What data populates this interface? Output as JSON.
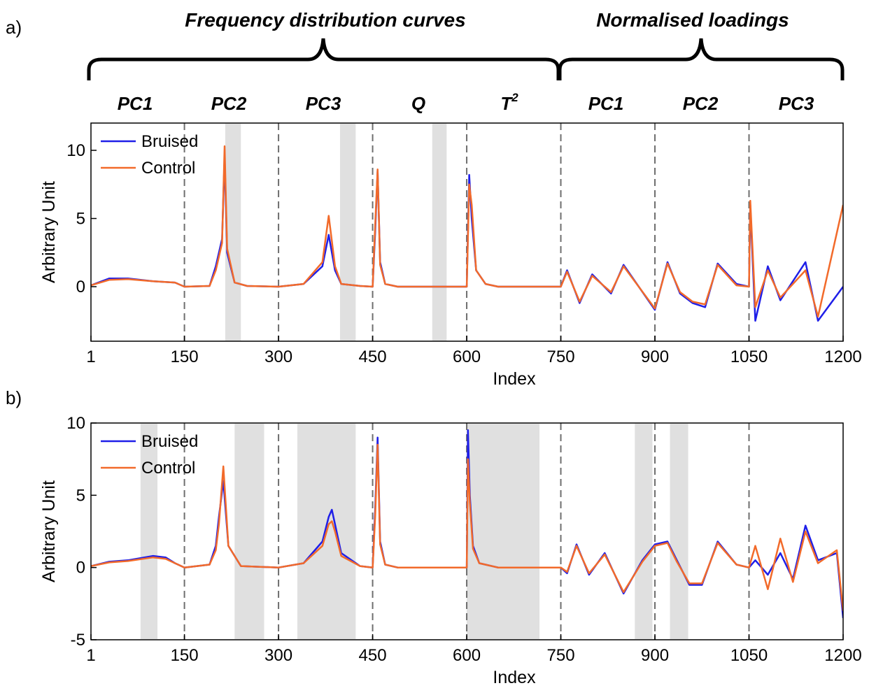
{
  "figure": {
    "group_titles": [
      "Frequency distribution curves",
      "Normalised loadings"
    ],
    "section_labels": [
      "PC1",
      "PC2",
      "PC3",
      "Q",
      "T",
      "PC1",
      "PC2",
      "PC3"
    ],
    "t2_superscript": "2"
  },
  "chart_data": [
    {
      "panel": "a)",
      "type": "line",
      "xlabel": "Index",
      "ylabel": "Arbitrary Unit",
      "xlim": [
        1,
        1200
      ],
      "ylim": [
        -4,
        12
      ],
      "xticks": [
        1,
        150,
        300,
        450,
        600,
        750,
        900,
        1050,
        1200
      ],
      "yticks": [
        0,
        5,
        10
      ],
      "legend": {
        "position": "top-left",
        "entries": [
          "Bruised",
          "Control"
        ]
      },
      "colors": {
        "Bruised": "#1f1fe8",
        "Control": "#f26a2a",
        "highlight": "#e0e0e0",
        "divider": "#6e6e6e"
      },
      "dividers": [
        150,
        300,
        450,
        600,
        750,
        900,
        1050
      ],
      "highlight_ranges": [
        [
          215,
          240
        ],
        [
          398,
          423
        ],
        [
          545,
          568
        ]
      ],
      "series": [
        {
          "name": "Bruised",
          "x": [
            1,
            30,
            60,
            100,
            135,
            150,
            190,
            200,
            210,
            214,
            218,
            230,
            250,
            300,
            340,
            370,
            380,
            390,
            400,
            430,
            450,
            454,
            458,
            462,
            470,
            490,
            600,
            604,
            608,
            615,
            630,
            650,
            750,
            760,
            780,
            800,
            830,
            850,
            900,
            920,
            940,
            960,
            980,
            1000,
            1030,
            1050,
            1052,
            1060,
            1080,
            1100,
            1140,
            1160,
            1200
          ],
          "y": [
            0.1,
            0.6,
            0.6,
            0.4,
            0.3,
            0,
            0.05,
            1.5,
            3.5,
            9.5,
            2.5,
            0.3,
            0.05,
            0,
            0.2,
            1.5,
            3.8,
            1.2,
            0.2,
            0.05,
            0,
            4,
            8.5,
            1.8,
            0.2,
            0,
            0,
            8.2,
            5,
            1.2,
            0.2,
            0,
            0,
            1.2,
            -1.2,
            0.9,
            -0.5,
            1.6,
            -1.7,
            1.8,
            -0.5,
            -1.2,
            -1.5,
            1.7,
            0.2,
            0,
            6,
            -2.5,
            1.5,
            -1,
            1.8,
            -2.5,
            0
          ]
        },
        {
          "name": "Control",
          "x": [
            1,
            30,
            60,
            100,
            135,
            150,
            190,
            200,
            210,
            214,
            218,
            230,
            250,
            300,
            340,
            370,
            380,
            390,
            400,
            430,
            450,
            454,
            458,
            462,
            470,
            490,
            600,
            604,
            608,
            615,
            630,
            650,
            750,
            760,
            780,
            800,
            830,
            850,
            900,
            920,
            940,
            960,
            980,
            1000,
            1030,
            1050,
            1052,
            1060,
            1080,
            1100,
            1140,
            1160,
            1200
          ],
          "y": [
            0.1,
            0.5,
            0.55,
            0.4,
            0.3,
            0,
            0.05,
            1.2,
            3.2,
            10.3,
            2.8,
            0.3,
            0.05,
            0,
            0.2,
            1.8,
            5.2,
            1.5,
            0.2,
            0.05,
            0,
            4.5,
            8.6,
            1.6,
            0.2,
            0,
            0,
            7.5,
            6,
            1.2,
            0.2,
            0,
            0,
            1.1,
            -1.1,
            0.8,
            -0.4,
            1.5,
            -1.6,
            1.7,
            -0.4,
            -1.1,
            -1.3,
            1.6,
            0.1,
            0,
            6.3,
            -1.5,
            1.2,
            -0.8,
            1.2,
            -2.2,
            6
          ]
        }
      ]
    },
    {
      "panel": "b)",
      "type": "line",
      "xlabel": "Index",
      "ylabel": "Arbitrary Unit",
      "xlim": [
        1,
        1200
      ],
      "ylim": [
        -5,
        10
      ],
      "xticks": [
        1,
        150,
        300,
        450,
        600,
        750,
        900,
        1050,
        1200
      ],
      "yticks": [
        -5,
        0,
        5,
        10
      ],
      "legend": {
        "position": "top-left",
        "entries": [
          "Bruised",
          "Control"
        ]
      },
      "colors": {
        "Bruised": "#1f1fe8",
        "Control": "#f26a2a",
        "highlight": "#e0e0e0",
        "divider": "#6e6e6e"
      },
      "dividers": [
        150,
        300,
        450,
        600,
        750,
        900,
        1050
      ],
      "highlight_ranges": [
        [
          80,
          107
        ],
        [
          230,
          277
        ],
        [
          330,
          423
        ],
        [
          600,
          716
        ],
        [
          868,
          896
        ],
        [
          924,
          953
        ]
      ],
      "series": [
        {
          "name": "Bruised",
          "x": [
            1,
            30,
            60,
            100,
            120,
            135,
            150,
            190,
            200,
            205,
            212,
            220,
            240,
            300,
            340,
            370,
            380,
            385,
            390,
            400,
            430,
            450,
            454,
            458,
            462,
            470,
            490,
            600,
            602,
            605,
            610,
            620,
            650,
            750,
            760,
            775,
            795,
            820,
            850,
            880,
            900,
            920,
            935,
            955,
            975,
            1000,
            1030,
            1050,
            1060,
            1080,
            1100,
            1120,
            1140,
            1160,
            1190,
            1200
          ],
          "y": [
            0.1,
            0.4,
            0.5,
            0.8,
            0.7,
            0.3,
            0,
            0.2,
            1.5,
            3.5,
            6.0,
            1.5,
            0.1,
            0,
            0.3,
            1.8,
            3.5,
            4.0,
            3.0,
            1.0,
            0.1,
            0,
            4,
            9.0,
            1.8,
            0.2,
            0,
            0,
            9.5,
            5,
            1.5,
            0.3,
            0,
            0,
            -0.4,
            1.6,
            -0.5,
            1.0,
            -1.8,
            0.5,
            1.6,
            1.8,
            0.5,
            -1.2,
            -1.2,
            1.8,
            0.2,
            0,
            0.5,
            -0.5,
            1.0,
            -0.8,
            2.9,
            0.5,
            1.0,
            -3.5
          ]
        },
        {
          "name": "Control",
          "x": [
            1,
            30,
            60,
            100,
            120,
            135,
            150,
            190,
            200,
            205,
            212,
            220,
            240,
            300,
            340,
            370,
            380,
            385,
            390,
            400,
            430,
            450,
            454,
            458,
            462,
            470,
            490,
            600,
            602,
            605,
            610,
            620,
            650,
            750,
            760,
            775,
            795,
            820,
            850,
            880,
            900,
            920,
            935,
            955,
            975,
            1000,
            1030,
            1050,
            1060,
            1080,
            1100,
            1120,
            1140,
            1160,
            1190,
            1200
          ],
          "y": [
            0.1,
            0.35,
            0.45,
            0.7,
            0.6,
            0.3,
            0,
            0.2,
            1.2,
            3.0,
            7.0,
            1.5,
            0.1,
            0,
            0.3,
            1.5,
            3.0,
            3.2,
            2.5,
            0.8,
            0.1,
            0,
            3.5,
            8.5,
            1.6,
            0.2,
            0,
            0,
            7.5,
            4.5,
            1.3,
            0.3,
            0,
            0,
            -0.3,
            1.5,
            -0.4,
            0.9,
            -1.7,
            0.4,
            1.5,
            1.7,
            0.4,
            -1.1,
            -1.1,
            1.7,
            0.2,
            0,
            1.5,
            -1.5,
            2.0,
            -1.0,
            2.5,
            0.3,
            1.2,
            -3.0
          ]
        }
      ]
    }
  ]
}
